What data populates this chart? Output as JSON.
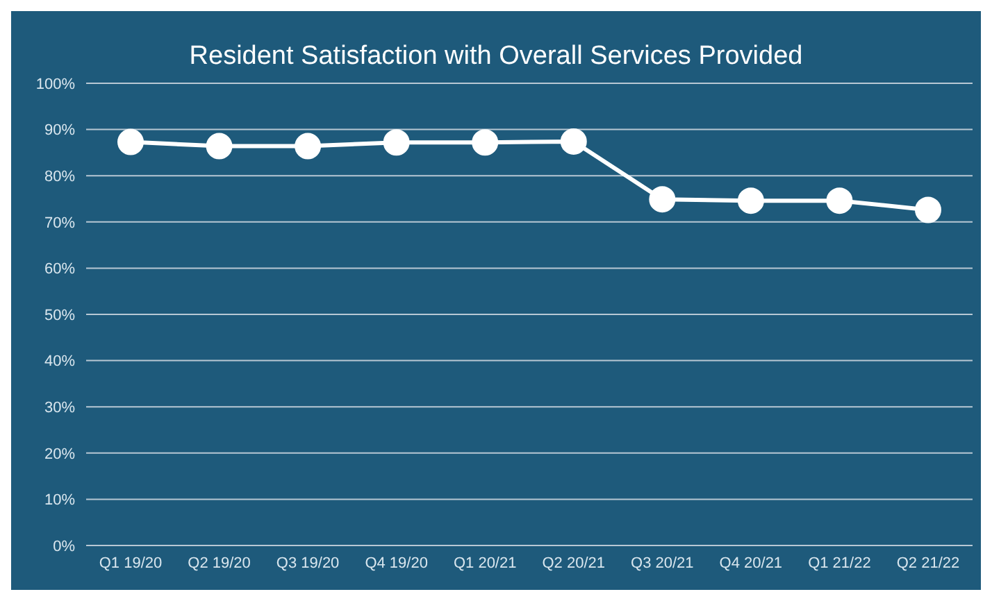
{
  "chart_data": {
    "type": "line",
    "title": "Resident Satisfaction with Overall Services Provided",
    "categories": [
      "Q1 19/20",
      "Q2 19/20",
      "Q3 19/20",
      "Q4 19/20",
      "Q1 20/21",
      "Q2 20/21",
      "Q3 20/21",
      "Q4 20/21",
      "Q1 21/22",
      "Q2 21/22"
    ],
    "series": [
      {
        "color": "#ffffff",
        "values": [
          87.3,
          86.4,
          86.4,
          87.2,
          87.2,
          87.4,
          74.9,
          74.6,
          74.6,
          72.6
        ]
      }
    ],
    "ylim": [
      0,
      100
    ],
    "yticks": [
      {
        "value": 0,
        "label": "0%"
      },
      {
        "value": 10,
        "label": "10%"
      },
      {
        "value": 20,
        "label": "20%"
      },
      {
        "value": 30,
        "label": "30%"
      },
      {
        "value": 40,
        "label": "40%"
      },
      {
        "value": 50,
        "label": "50%"
      },
      {
        "value": 60,
        "label": "60%"
      },
      {
        "value": 70,
        "label": "70%"
      },
      {
        "value": 80,
        "label": "80%"
      },
      {
        "value": 90,
        "label": "90%"
      },
      {
        "value": 100,
        "label": "100%"
      }
    ],
    "grid": "y",
    "marker": "circle",
    "line_style": "solid",
    "legend": false
  }
}
